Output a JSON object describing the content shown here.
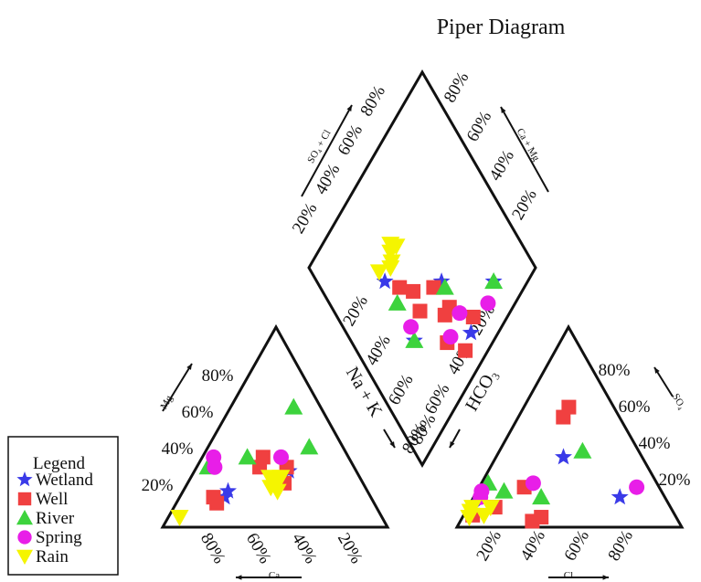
{
  "title": "Piper Diagram",
  "legend": {
    "title": "Legend",
    "items": [
      {
        "name": "Wetland",
        "color": "#3a3ae8",
        "marker": "star"
      },
      {
        "name": "Well",
        "color": "#f04040",
        "marker": "square"
      },
      {
        "name": "River",
        "color": "#3dd33d",
        "marker": "triangle-up"
      },
      {
        "name": "Spring",
        "color": "#e81ee8",
        "marker": "circle"
      },
      {
        "name": "Rain",
        "color": "#f5f500",
        "marker": "triangle-down"
      }
    ]
  },
  "axes": {
    "diamond_upper_left": "SO₄ + Cl",
    "diamond_upper_right": "Ca + Mg",
    "diamond_lower_left": "Na + K",
    "diamond_lower_right": "HCO₃",
    "cation_left": "Mg",
    "cation_bottom": "Ca",
    "anion_right": "SO₄",
    "anion_bottom": "Cl"
  },
  "tick_labels": {
    "diamond_upper_left": [
      "20%",
      "40%",
      "60%",
      "80%"
    ],
    "diamond_upper_right": [
      "80%",
      "60%",
      "40%",
      "20%"
    ],
    "diamond_lower_left": [
      "20%",
      "40%",
      "60%",
      "80%"
    ],
    "diamond_lower_right": [
      "20%",
      "40%",
      "60%",
      "80%"
    ],
    "cation_left": [
      "20%",
      "40%",
      "60%",
      "80%"
    ],
    "cation_bottom": [
      "80%",
      "60%",
      "40%",
      "20%"
    ],
    "anion_right": [
      "80%",
      "60%",
      "40%",
      "20%"
    ],
    "anion_bottom": [
      "20%",
      "40%",
      "60%",
      "80%"
    ]
  },
  "chart_data": {
    "type": "scatter",
    "diagram": "piper",
    "series": [
      {
        "name": "Wetland",
        "cation_triangle": [
          [
            28,
            30,
            42
          ],
          [
            18,
            62,
            20
          ],
          [
            15,
            65,
            20
          ]
        ],
        "anion_triangle": [
          [
            10,
            88,
            2
          ],
          [
            35,
            35,
            30
          ],
          [
            15,
            20,
            65
          ]
        ],
        "diamond": [
          [
            30,
            37
          ],
          [
            28,
            65
          ],
          [
            55,
            62
          ],
          [
            55,
            88
          ],
          [
            78,
            85
          ]
        ]
      },
      {
        "name": "Well",
        "cation_triangle": [
          [
            22,
            35,
            43
          ],
          [
            30,
            30,
            40
          ],
          [
            35,
            38,
            27
          ],
          [
            30,
            42,
            28
          ],
          [
            15,
            70,
            15
          ],
          [
            12,
            70,
            18
          ]
        ],
        "anion_triangle": [
          [
            60,
            20,
            20
          ],
          [
            55,
            25,
            20
          ],
          [
            20,
            60,
            20
          ],
          [
            5,
            60,
            35
          ],
          [
            3,
            65,
            32
          ],
          [
            10,
            78,
            12
          ],
          [
            6,
            90,
            4
          ]
        ],
        "diamond": [
          [
            38,
            60
          ],
          [
            48,
            72
          ],
          [
            42,
            80
          ],
          [
            60,
            85
          ],
          [
            52,
            72
          ],
          [
            50,
            60
          ],
          [
            48,
            90
          ],
          [
            35,
            45
          ],
          [
            40,
            52
          ]
        ]
      },
      {
        "name": "River",
        "cation_triangle": [
          [
            60,
            12,
            28
          ],
          [
            40,
            15,
            45
          ],
          [
            35,
            45,
            20
          ],
          [
            30,
            65,
            5
          ]
        ],
        "anion_triangle": [
          [
            22,
            75,
            3
          ],
          [
            18,
            70,
            12
          ],
          [
            38,
            25,
            37
          ],
          [
            15,
            55,
            30
          ]
        ],
        "diamond": [
          [
            28,
            65
          ],
          [
            30,
            48
          ],
          [
            55,
            65
          ],
          [
            78,
            85
          ]
        ]
      },
      {
        "name": "Spring",
        "cation_triangle": [
          [
            35,
            30,
            35
          ],
          [
            30,
            62,
            8
          ],
          [
            35,
            60,
            5
          ]
        ],
        "anion_triangle": [
          [
            20,
            10,
            70
          ],
          [
            22,
            55,
            23
          ],
          [
            18,
            80,
            2
          ],
          [
            15,
            82,
            3
          ]
        ],
        "diamond": [
          [
            30,
            60
          ],
          [
            55,
            78
          ],
          [
            45,
            80
          ],
          [
            70,
            88
          ]
        ]
      },
      {
        "name": "Rain",
        "cation_triangle": [
          [
            5,
            90,
            5
          ],
          [
            25,
            40,
            35
          ],
          [
            20,
            42,
            38
          ],
          [
            22,
            38,
            40
          ],
          [
            18,
            40,
            42
          ],
          [
            25,
            35,
            40
          ]
        ],
        "anion_triangle": [
          [
            8,
            90,
            2
          ],
          [
            10,
            88,
            2
          ],
          [
            6,
            85,
            9
          ],
          [
            10,
            80,
            10
          ],
          [
            5,
            92,
            3
          ]
        ],
        "diamond": [
          [
            30,
            32
          ],
          [
            40,
            32
          ],
          [
            38,
            35
          ],
          [
            42,
            30
          ],
          [
            44,
            33
          ],
          [
            36,
            36
          ]
        ]
      }
    ]
  }
}
